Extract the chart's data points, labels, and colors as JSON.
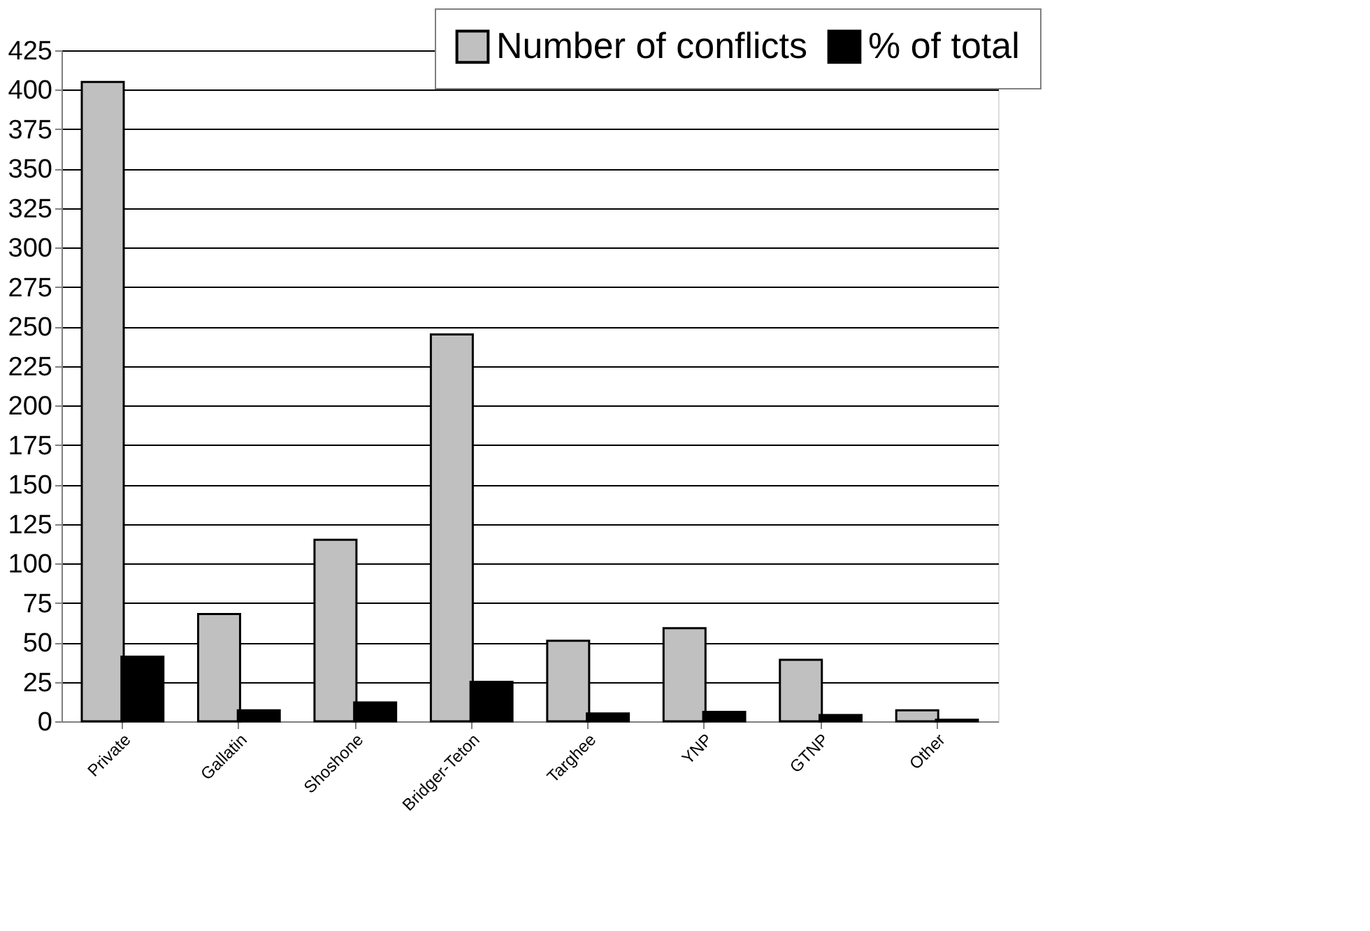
{
  "chart_data": {
    "type": "bar",
    "categories": [
      "Private",
      "Gallatin",
      "Shoshone",
      "Bridger-Teton",
      "Targhee",
      "YNP",
      "GTNP",
      "Other"
    ],
    "series": [
      {
        "name": "Number of conflicts",
        "color": "#c0c0c0",
        "values": [
          405,
          68,
          115,
          245,
          51,
          59,
          39,
          7
        ]
      },
      {
        "name": "% of total",
        "color": "#000000",
        "values": [
          41,
          7,
          12,
          25,
          5,
          6,
          4,
          1
        ]
      }
    ],
    "ylim": [
      0,
      425
    ],
    "yticks": [
      0,
      25,
      50,
      75,
      100,
      125,
      150,
      175,
      200,
      225,
      250,
      275,
      300,
      325,
      350,
      375,
      400,
      425
    ],
    "grid": "y",
    "legend": "top right"
  }
}
